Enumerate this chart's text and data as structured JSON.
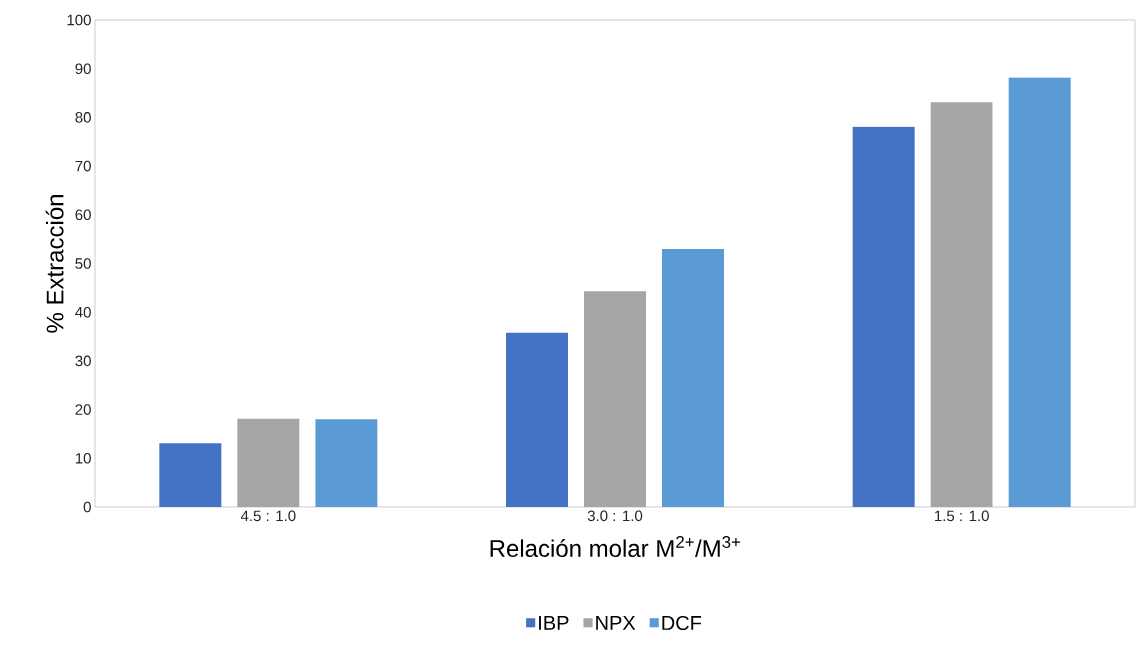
{
  "chart_data": {
    "type": "bar",
    "xlabel": "Relación molar M$^{2+}$/M$^{3+}$",
    "ylabel": "% Extracción",
    "categories": [
      "4.5 : 1.0",
      "3.0 : 1.0",
      "1.5 : 1.0"
    ],
    "series": [
      {
        "name": "IBP",
        "color": "#4472c4",
        "values": [
          13.1,
          35.8,
          78.1
        ]
      },
      {
        "name": "NPX",
        "color": "#a5a5a5",
        "values": [
          18.1,
          44.3,
          83.1
        ]
      },
      {
        "name": "DCF",
        "color": "#5b9bd5",
        "values": [
          18.0,
          53.0,
          88.2
        ]
      }
    ],
    "ylim": [
      0,
      100
    ],
    "yticks": [
      0,
      10,
      20,
      30,
      40,
      50,
      60,
      70,
      80,
      90,
      100
    ],
    "grid": false,
    "legend": "bottom"
  }
}
